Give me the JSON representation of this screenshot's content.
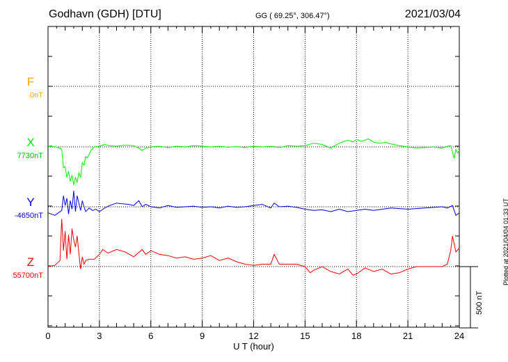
{
  "header": {
    "station": "Godhavn (GDH)  [DTU]",
    "coords": "GG ( 69.25°, 306.47°)",
    "date": "2021/03/04"
  },
  "footer": {
    "plotted": "Plotted at 2021/04/04 01:33 UT",
    "scale_label": "500 nT"
  },
  "colors": {
    "F": "#ffa500",
    "X": "#00ee00",
    "Y": "#0000dd",
    "Z": "#ee0000"
  },
  "chart_data": {
    "type": "line",
    "title": "",
    "xlabel": "U T (hour)",
    "ylabel": "",
    "xlim": [
      0,
      24
    ],
    "xticks": [
      "0",
      "3",
      "6",
      "9",
      "12",
      "15",
      "18",
      "21",
      "24"
    ],
    "scale_bar_nT": 500,
    "components": [
      {
        "name": "F",
        "baseline_label": "0nT",
        "baseline": 0,
        "x": [],
        "y": []
      },
      {
        "name": "X",
        "baseline_label": "7730nT",
        "baseline": 7730,
        "x": [
          0,
          0.5,
          0.8,
          0.9,
          1.0,
          1.1,
          1.2,
          1.3,
          1.4,
          1.5,
          1.6,
          1.7,
          1.8,
          1.9,
          2.0,
          2.1,
          2.2,
          2.3,
          2.5,
          2.7,
          3.0,
          3.3,
          3.6,
          4.0,
          4.5,
          5.0,
          5.3,
          5.5,
          5.7,
          6.0,
          6.5,
          7.0,
          7.5,
          8.0,
          8.5,
          9.0,
          9.5,
          10.0,
          10.5,
          11.0,
          11.5,
          12.0,
          12.5,
          13.0,
          13.5,
          14.0,
          14.5,
          15.0,
          15.5,
          16.0,
          16.5,
          16.8,
          17.0,
          17.5,
          17.8,
          18.0,
          18.3,
          18.7,
          19.0,
          19.3,
          19.7,
          20.0,
          20.5,
          21.0,
          21.5,
          22.0,
          22.5,
          23.0,
          23.3,
          23.5,
          23.6,
          23.7,
          23.8,
          23.9,
          24.0
        ],
        "y": [
          7735,
          7730,
          7710,
          7560,
          7570,
          7480,
          7530,
          7450,
          7500,
          7420,
          7480,
          7440,
          7520,
          7480,
          7600,
          7580,
          7650,
          7640,
          7700,
          7730,
          7735,
          7750,
          7740,
          7735,
          7745,
          7740,
          7720,
          7700,
          7720,
          7730,
          7735,
          7725,
          7735,
          7730,
          7740,
          7735,
          7730,
          7735,
          7728,
          7732,
          7725,
          7735,
          7730,
          7735,
          7725,
          7740,
          7735,
          7740,
          7760,
          7750,
          7720,
          7745,
          7760,
          7785,
          7770,
          7790,
          7775,
          7795,
          7770,
          7760,
          7765,
          7755,
          7740,
          7730,
          7720,
          7725,
          7730,
          7720,
          7735,
          7740,
          7690,
          7635,
          7710,
          7680,
          7700
        ]
      },
      {
        "name": "Y",
        "baseline_label": "-4650nT",
        "baseline": -4650,
        "x": [
          0,
          0.4,
          0.8,
          0.9,
          1.0,
          1.1,
          1.2,
          1.3,
          1.4,
          1.5,
          1.6,
          1.7,
          1.8,
          1.9,
          2.0,
          2.1,
          2.2,
          2.4,
          2.6,
          2.8,
          3.0,
          3.3,
          3.6,
          4.0,
          4.3,
          4.7,
          5.0,
          5.3,
          5.5,
          5.7,
          6.0,
          6.5,
          7.0,
          7.5,
          8.0,
          8.5,
          9.0,
          9.5,
          10.0,
          10.5,
          11.0,
          11.5,
          12.0,
          12.5,
          13.0,
          13.2,
          13.5,
          14.0,
          14.5,
          15.0,
          15.5,
          16.0,
          16.5,
          17.0,
          17.5,
          18.0,
          18.5,
          19.0,
          19.5,
          20.0,
          20.5,
          21.0,
          21.5,
          22.0,
          22.5,
          23.0,
          23.3,
          23.6,
          23.8,
          24.0
        ],
        "y": [
          -4700,
          -4720,
          -4680,
          -4560,
          -4640,
          -4580,
          -4710,
          -4600,
          -4670,
          -4520,
          -4690,
          -4560,
          -4620,
          -4680,
          -4600,
          -4650,
          -4690,
          -4660,
          -4680,
          -4670,
          -4690,
          -4660,
          -4640,
          -4620,
          -4625,
          -4630,
          -4640,
          -4600,
          -4650,
          -4630,
          -4650,
          -4660,
          -4640,
          -4655,
          -4650,
          -4645,
          -4655,
          -4650,
          -4660,
          -4645,
          -4655,
          -4650,
          -4640,
          -4630,
          -4660,
          -4620,
          -4650,
          -4645,
          -4655,
          -4670,
          -4680,
          -4675,
          -4690,
          -4670,
          -4690,
          -4680,
          -4670,
          -4680,
          -4670,
          -4660,
          -4665,
          -4670,
          -4665,
          -4660,
          -4655,
          -4650,
          -4660,
          -4640,
          -4720,
          -4700
        ]
      },
      {
        "name": "Z",
        "baseline_label": "55700nT",
        "baseline": 55700,
        "x": [
          0,
          0.4,
          0.7,
          0.8,
          0.9,
          1.0,
          1.1,
          1.2,
          1.3,
          1.4,
          1.5,
          1.6,
          1.7,
          1.8,
          1.9,
          2.0,
          2.1,
          2.2,
          2.4,
          2.7,
          3.0,
          3.2,
          3.5,
          4.0,
          4.5,
          5.0,
          5.5,
          5.7,
          6.0,
          6.5,
          7.0,
          7.5,
          8.0,
          8.5,
          9.0,
          9.5,
          10.0,
          10.5,
          11.0,
          11.5,
          12.0,
          12.5,
          13.0,
          13.2,
          13.5,
          14.0,
          14.5,
          15.0,
          15.3,
          15.5,
          16.0,
          16.5,
          17.0,
          17.5,
          17.8,
          18.0,
          18.5,
          19.0,
          19.5,
          20.0,
          20.5,
          21.0,
          21.5,
          22.0,
          22.5,
          23.0,
          23.3,
          23.5,
          23.6,
          23.8,
          24.0
        ],
        "y": [
          55700,
          55710,
          55750,
          56090,
          55830,
          55990,
          55760,
          55960,
          55800,
          56010,
          55920,
          55860,
          55950,
          55810,
          55680,
          55780,
          55720,
          55750,
          55760,
          55760,
          55800,
          55840,
          55810,
          55840,
          55820,
          55780,
          55840,
          55800,
          55830,
          55800,
          55790,
          55770,
          55780,
          55760,
          55770,
          55790,
          55750,
          55770,
          55740,
          55720,
          55710,
          55720,
          55720,
          55800,
          55720,
          55720,
          55720,
          55700,
          55650,
          55670,
          55700,
          55660,
          55640,
          55680,
          55630,
          55640,
          55690,
          55660,
          55680,
          55640,
          55650,
          55680,
          55700,
          55700,
          55700,
          55700,
          55720,
          55830,
          55950,
          55820,
          55850
        ]
      }
    ]
  }
}
